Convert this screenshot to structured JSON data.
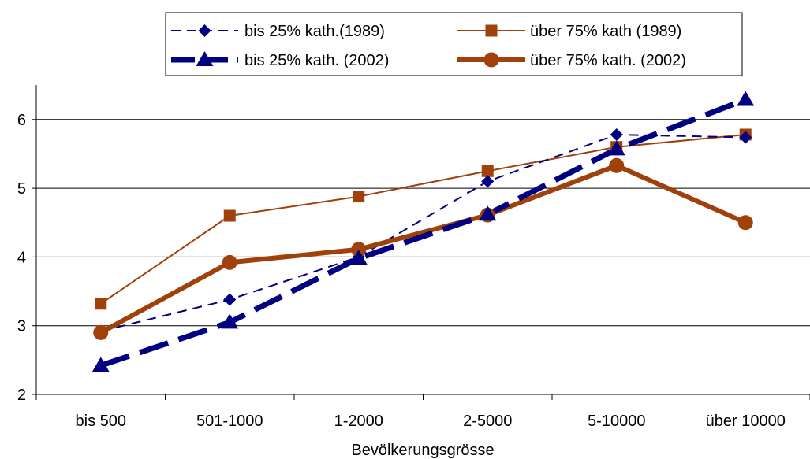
{
  "chart_data": {
    "type": "line",
    "title": "",
    "xlabel": "Bevölkerungsgrösse",
    "ylabel": "",
    "categories": [
      "bis 500",
      "501-1000",
      "1-2000",
      "2-5000",
      "5-10000",
      "über 10000"
    ],
    "ylim": [
      2,
      6.5
    ],
    "yticks": [
      2,
      3,
      4,
      5,
      6
    ],
    "grid": "horizontal",
    "legend_position": "top",
    "series": [
      {
        "name": "bis 25% kath.(1989)",
        "values": [
          2.92,
          3.38,
          4.0,
          5.1,
          5.78,
          5.74
        ],
        "color": "#000080",
        "style": "thin-dashed",
        "marker": "diamond"
      },
      {
        "name": "über 75% kath (1989)",
        "values": [
          3.32,
          4.6,
          4.88,
          5.25,
          5.6,
          5.78
        ],
        "color": "#A0400A",
        "style": "thin-solid",
        "marker": "square"
      },
      {
        "name": "bis 25% kath. (2002)",
        "values": [
          2.42,
          3.05,
          3.98,
          4.62,
          5.57,
          6.29
        ],
        "color": "#000080",
        "style": "thick-dashed",
        "marker": "triangle"
      },
      {
        "name": "über 75% kath. (2002)",
        "values": [
          2.9,
          3.92,
          4.11,
          4.61,
          5.33,
          4.5
        ],
        "color": "#A0400A",
        "style": "thick-solid",
        "marker": "circle"
      }
    ]
  }
}
